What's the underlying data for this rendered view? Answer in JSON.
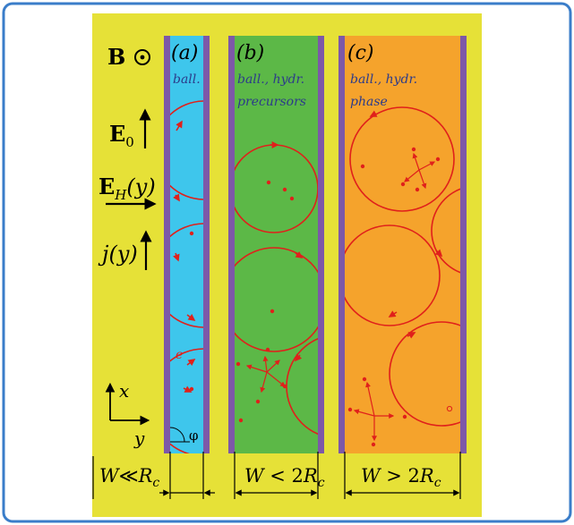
{
  "symbols": {
    "B": "B",
    "E": "E",
    "E0_sub": "0",
    "EH_sub": "H",
    "EH_arg": "(y)",
    "j": "j",
    "j_arg": "(y)",
    "axis_x": "x",
    "axis_y": "y",
    "phi": "φ",
    "electron": "e"
  },
  "panels": [
    {
      "id": "a",
      "tag": "(a)",
      "caption": [
        "ball."
      ]
    },
    {
      "id": "b",
      "tag": "(b)",
      "caption": [
        "ball., hydr.",
        "precursors"
      ]
    },
    {
      "id": "c",
      "tag": "(c)",
      "caption": [
        "ball., hydr.",
        "phase"
      ]
    }
  ],
  "width_labels": {
    "a": {
      "lhs": "W",
      "rel": "≪",
      "rhs": "R",
      "sub": "c"
    },
    "b": {
      "lhs": "W",
      "rel": " < 2",
      "rhs": "R",
      "sub": "c"
    },
    "c": {
      "lhs": "W",
      "rel": " > 2",
      "rhs": "R",
      "sub": "c"
    }
  },
  "colors": {
    "background": "#e6e137",
    "border": "#3a7dc9",
    "panel_a": "#3ec6ec",
    "panel_b": "#5cb847",
    "panel_c": "#f5a32c",
    "wall": "#7d58a8",
    "trajectory": "#e0201b",
    "label_text": "#2c3b8a"
  }
}
